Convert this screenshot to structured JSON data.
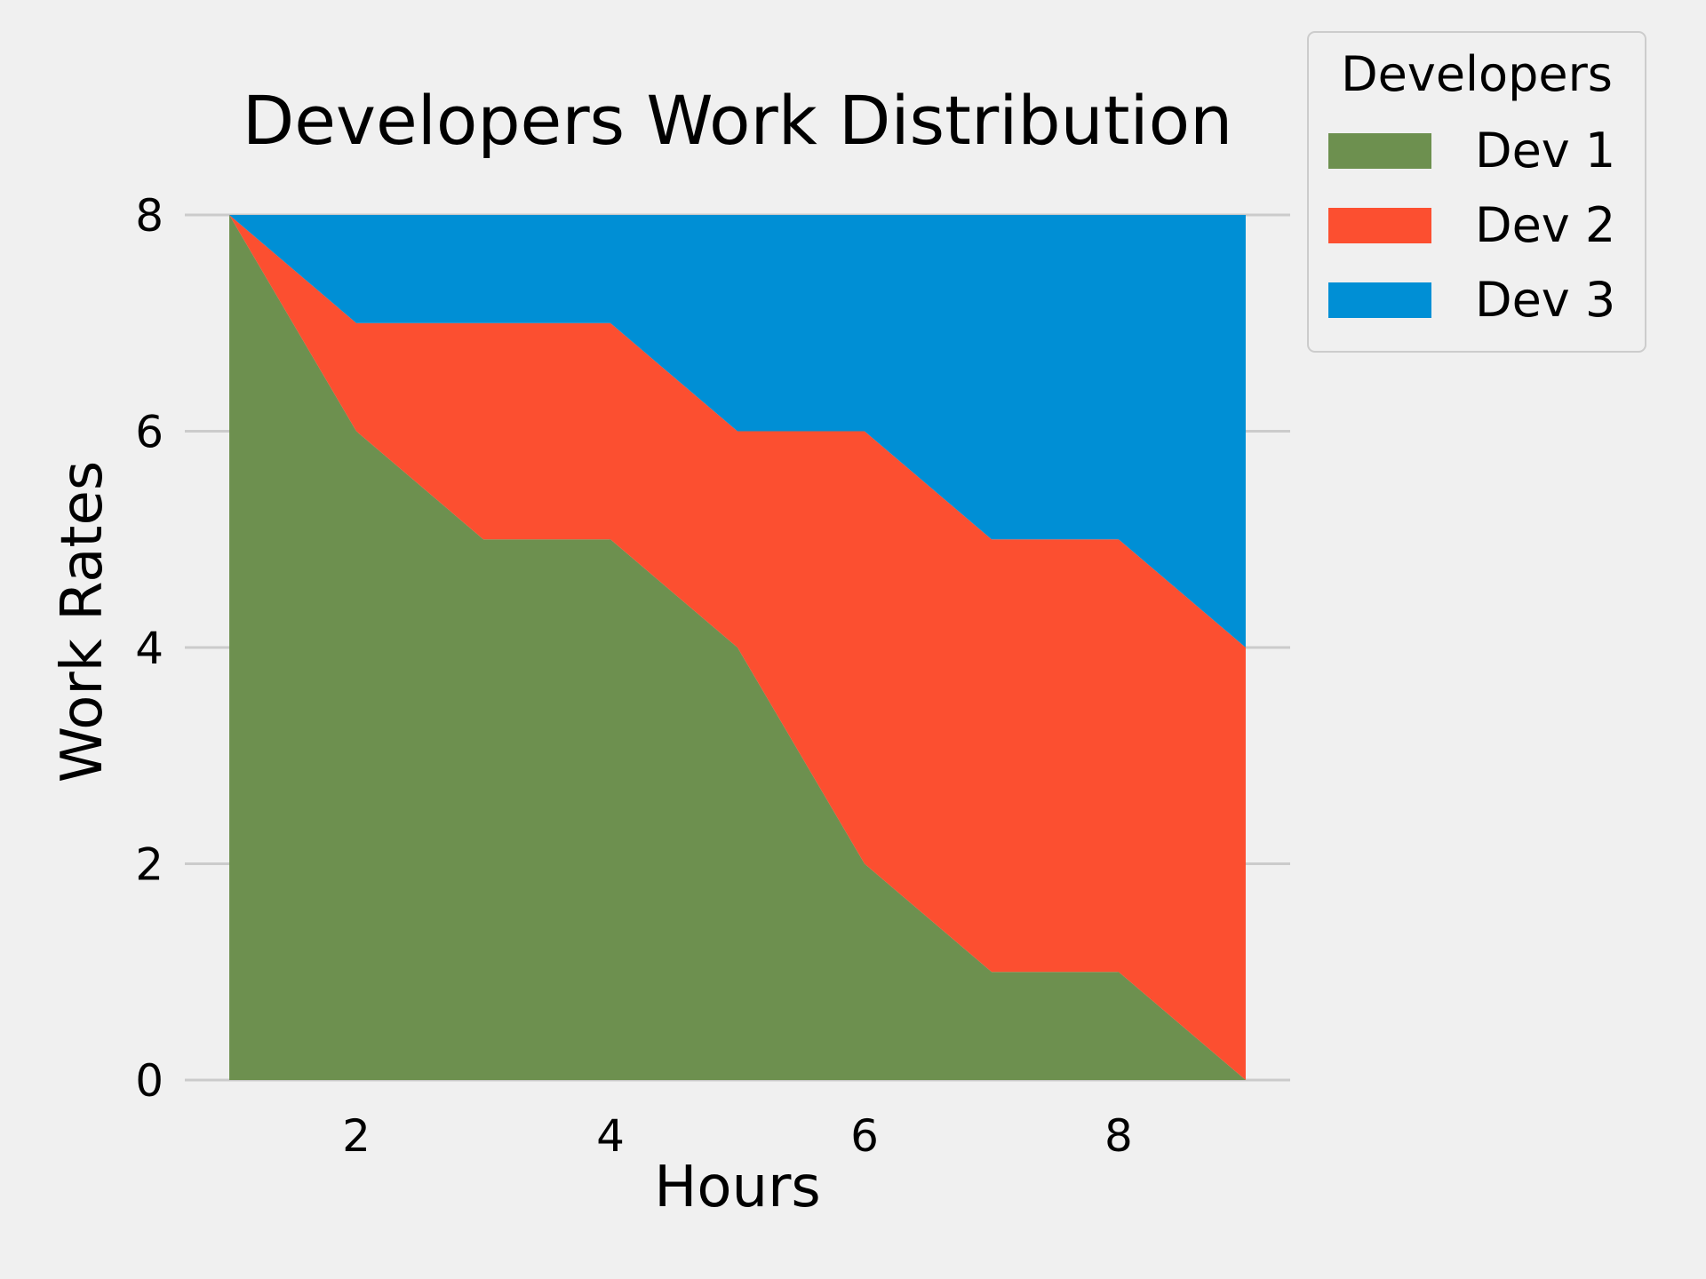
{
  "chart_data": {
    "type": "area",
    "stacked": true,
    "title": "Developers Work Distribution",
    "xlabel": "Hours",
    "ylabel": "Work Rates",
    "x": [
      1,
      2,
      3,
      4,
      5,
      6,
      7,
      8,
      9
    ],
    "xlim": [
      0.65,
      9.35
    ],
    "ylim": [
      0,
      8
    ],
    "x_ticks": [
      2,
      4,
      6,
      8
    ],
    "y_ticks": [
      0,
      2,
      4,
      6,
      8
    ],
    "grid": true,
    "series": [
      {
        "name": "Dev 1",
        "color": "#6d904f",
        "values": [
          8,
          6,
          5,
          5,
          4,
          2,
          1,
          1,
          0
        ]
      },
      {
        "name": "Dev 2",
        "color": "#fc4f30",
        "values": [
          0,
          1,
          2,
          2,
          2,
          4,
          4,
          4,
          4
        ]
      },
      {
        "name": "Dev 3",
        "color": "#008fd5",
        "values": [
          0,
          1,
          1,
          1,
          2,
          2,
          3,
          3,
          4
        ]
      }
    ],
    "legend": {
      "title": "Developers",
      "position": "outside-top-right"
    }
  }
}
